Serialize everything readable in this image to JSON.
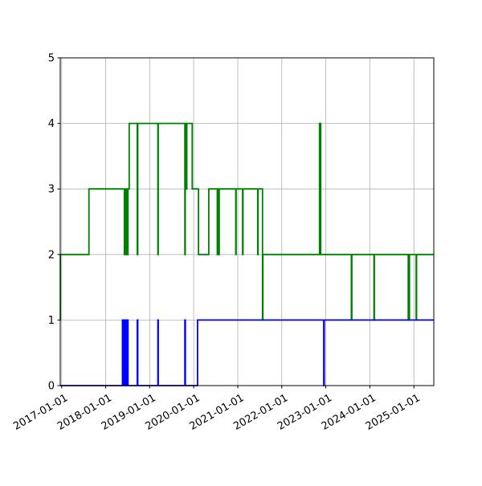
{
  "chart_data": {
    "type": "line",
    "title": "",
    "xlabel": "",
    "ylabel": "",
    "x_axis": {
      "type": "date",
      "range": [
        "2016-12-20",
        "2025-06-15"
      ],
      "ticks": [
        "2017-01-01",
        "2018-01-01",
        "2019-01-01",
        "2020-01-01",
        "2021-01-01",
        "2022-01-01",
        "2023-01-01",
        "2024-01-01",
        "2025-01-01"
      ],
      "tick_labels": [
        "2017-01-01",
        "2018-01-01",
        "2019-01-01",
        "2020-01-01",
        "2021-01-01",
        "2022-01-01",
        "2023-01-01",
        "2024-01-01",
        "2025-01-01"
      ]
    },
    "y_axis": {
      "range": [
        0,
        5
      ],
      "ticks": [
        0,
        1,
        2,
        3,
        4,
        5
      ],
      "tick_labels": [
        "0",
        "1",
        "2",
        "3",
        "4",
        "5"
      ]
    },
    "grid": true,
    "legend": "none",
    "series": [
      {
        "color": "#008000",
        "step": true,
        "points": [
          [
            "2016-12-20",
            1
          ],
          [
            "2016-12-21",
            2
          ],
          [
            "2017-08-15",
            3
          ],
          [
            "2018-06-05",
            2
          ],
          [
            "2018-06-10",
            3
          ],
          [
            "2018-06-15",
            2
          ],
          [
            "2018-06-20",
            3
          ],
          [
            "2018-06-28",
            2
          ],
          [
            "2018-07-05",
            3
          ],
          [
            "2018-07-15",
            4
          ],
          [
            "2018-09-20",
            2
          ],
          [
            "2018-09-24",
            4
          ],
          [
            "2019-03-10",
            2
          ],
          [
            "2019-03-13",
            4
          ],
          [
            "2019-10-20",
            2
          ],
          [
            "2019-10-23",
            4
          ],
          [
            "2019-10-27",
            3
          ],
          [
            "2019-10-30",
            4
          ],
          [
            "2019-11-02",
            3
          ],
          [
            "2019-11-05",
            4
          ],
          [
            "2019-12-20",
            3
          ],
          [
            "2020-02-10",
            2
          ],
          [
            "2020-05-05",
            3
          ],
          [
            "2020-07-15",
            2
          ],
          [
            "2020-07-18",
            3
          ],
          [
            "2020-07-28",
            2
          ],
          [
            "2020-07-31",
            3
          ],
          [
            "2020-12-15",
            2
          ],
          [
            "2020-12-18",
            3
          ],
          [
            "2021-02-10",
            2
          ],
          [
            "2021-02-13",
            3
          ],
          [
            "2021-06-15",
            2
          ],
          [
            "2021-06-18",
            3
          ],
          [
            "2021-07-25",
            1
          ],
          [
            "2021-07-28",
            2
          ],
          [
            "2022-04-20",
            2
          ],
          [
            "2022-11-10",
            4
          ],
          [
            "2022-11-20",
            2
          ],
          [
            "2022-11-23",
            2
          ],
          [
            "2023-08-01",
            1
          ],
          [
            "2023-08-05",
            2
          ],
          [
            "2024-02-05",
            1
          ],
          [
            "2024-02-08",
            2
          ],
          [
            "2024-11-15",
            1
          ],
          [
            "2024-11-18",
            2
          ],
          [
            "2024-11-22",
            1
          ],
          [
            "2024-11-25",
            2
          ],
          [
            "2025-01-20",
            1
          ],
          [
            "2025-01-23",
            2
          ],
          [
            "2025-06-15",
            2
          ]
        ]
      },
      {
        "color": "#0000ff",
        "step": true,
        "points": [
          [
            "2016-12-20",
            0
          ],
          [
            "2018-05-20",
            1
          ],
          [
            "2018-05-24",
            0
          ],
          [
            "2018-06-01",
            1
          ],
          [
            "2018-06-05",
            0
          ],
          [
            "2018-06-08",
            1
          ],
          [
            "2018-06-12",
            0
          ],
          [
            "2018-06-15",
            1
          ],
          [
            "2018-06-19",
            0
          ],
          [
            "2018-06-22",
            1
          ],
          [
            "2018-06-26",
            0
          ],
          [
            "2018-07-02",
            1
          ],
          [
            "2018-07-05",
            0
          ],
          [
            "2018-09-20",
            1
          ],
          [
            "2018-09-24",
            0
          ],
          [
            "2019-03-10",
            1
          ],
          [
            "2019-03-13",
            0
          ],
          [
            "2019-10-20",
            1
          ],
          [
            "2019-10-24",
            0
          ],
          [
            "2020-02-02",
            1
          ],
          [
            "2022-12-15",
            0
          ],
          [
            "2022-12-19",
            1
          ],
          [
            "2025-06-15",
            1
          ]
        ]
      }
    ]
  }
}
